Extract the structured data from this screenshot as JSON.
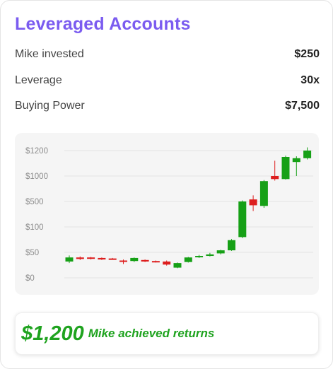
{
  "header": {
    "title": "Leveraged Accounts"
  },
  "stats": [
    {
      "label": "Mike invested",
      "value": "$250"
    },
    {
      "label": "Leverage",
      "value": "30x"
    },
    {
      "label": "Buying Power",
      "value": "$7,500"
    }
  ],
  "chart_data": {
    "type": "candlestick",
    "y_tick_labels": [
      "$1200",
      "$1000",
      "$500",
      "$100",
      "$50",
      "$0"
    ],
    "y_scale": "non-linear (tick labels evenly spaced)",
    "grid": true,
    "up_color": "#16a016",
    "down_color": "#dd1e1e",
    "candles": [
      {
        "open": 32,
        "close": 40,
        "high": 44,
        "low": 29
      },
      {
        "open": 40,
        "close": 37,
        "high": 42,
        "low": 35
      },
      {
        "open": 40,
        "close": 38,
        "high": 41,
        "low": 36
      },
      {
        "open": 39,
        "close": 36,
        "high": 40,
        "low": 35
      },
      {
        "open": 38,
        "close": 37,
        "high": 39,
        "low": 36
      },
      {
        "open": 34,
        "close": 33,
        "high": 36,
        "low": 27
      },
      {
        "open": 33,
        "close": 39,
        "high": 40,
        "low": 31
      },
      {
        "open": 35,
        "close": 32,
        "high": 36,
        "low": 31
      },
      {
        "open": 33,
        "close": 31,
        "high": 34,
        "low": 30
      },
      {
        "open": 32,
        "close": 26,
        "high": 34,
        "low": 24
      },
      {
        "open": 20,
        "close": 29,
        "high": 30,
        "low": 19
      },
      {
        "open": 31,
        "close": 40,
        "high": 41,
        "low": 30
      },
      {
        "open": 41,
        "close": 43,
        "high": 45,
        "low": 39
      },
      {
        "open": 43,
        "close": 46,
        "high": 49,
        "low": 42
      },
      {
        "open": 48,
        "close": 54,
        "high": 55,
        "low": 46
      },
      {
        "open": 54,
        "close": 74,
        "high": 76,
        "low": 53
      },
      {
        "open": 80,
        "close": 500,
        "high": 520,
        "low": 78
      },
      {
        "open": 540,
        "close": 440,
        "high": 620,
        "low": 350
      },
      {
        "open": 430,
        "close": 900,
        "high": 920,
        "low": 400
      },
      {
        "open": 1000,
        "close": 940,
        "high": 1120,
        "low": 910
      },
      {
        "open": 940,
        "close": 1150,
        "high": 1160,
        "low": 930
      },
      {
        "open": 1110,
        "close": 1140,
        "high": 1155,
        "low": 1000
      },
      {
        "open": 1140,
        "close": 1200,
        "high": 1225,
        "low": 1130
      }
    ]
  },
  "result": {
    "amount": "$1,200",
    "text": "Mike achieved returns"
  },
  "colors": {
    "title": "#7b5cf0",
    "result": "#1fa31f"
  }
}
